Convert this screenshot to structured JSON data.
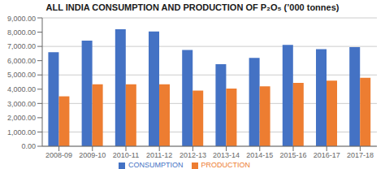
{
  "chart_data": {
    "type": "bar",
    "title": "ALL INDIA CONSUMPTION AND PRODUCTION OF P₂O₅ (’000 tonnes)",
    "categories": [
      "2008-09",
      "2009-10",
      "2010-11",
      "2011-12",
      "2012-13",
      "2013-14",
      "2014-15",
      "2015-16",
      "2016-17",
      "2017-18"
    ],
    "series": [
      {
        "name": "CONSUMPTION",
        "color": "#4472C4",
        "values": [
          6600,
          7400,
          8200,
          8050,
          6750,
          5750,
          6200,
          7100,
          6800,
          6950
        ]
      },
      {
        "name": "PRODUCTION",
        "color": "#ED7D31",
        "values": [
          3500,
          4350,
          4350,
          4350,
          3900,
          4050,
          4200,
          4450,
          4600,
          4800
        ]
      }
    ],
    "ylim": [
      0,
      9000
    ],
    "yticks": [
      {
        "value": 0,
        "label": "0.00"
      },
      {
        "value": 1000,
        "label": "1,000.00"
      },
      {
        "value": 2000,
        "label": "2,000.00"
      },
      {
        "value": 3000,
        "label": "3,000.00"
      },
      {
        "value": 4000,
        "label": "4,000.00"
      },
      {
        "value": 5000,
        "label": "5,000.00"
      },
      {
        "value": 6000,
        "label": "6,000.00"
      },
      {
        "value": 7000,
        "label": "7,000.00"
      },
      {
        "value": 8000,
        "label": "8,000.00"
      },
      {
        "value": 9000,
        "label": "9,000.00"
      }
    ],
    "grid": true,
    "legend": "bottom"
  }
}
